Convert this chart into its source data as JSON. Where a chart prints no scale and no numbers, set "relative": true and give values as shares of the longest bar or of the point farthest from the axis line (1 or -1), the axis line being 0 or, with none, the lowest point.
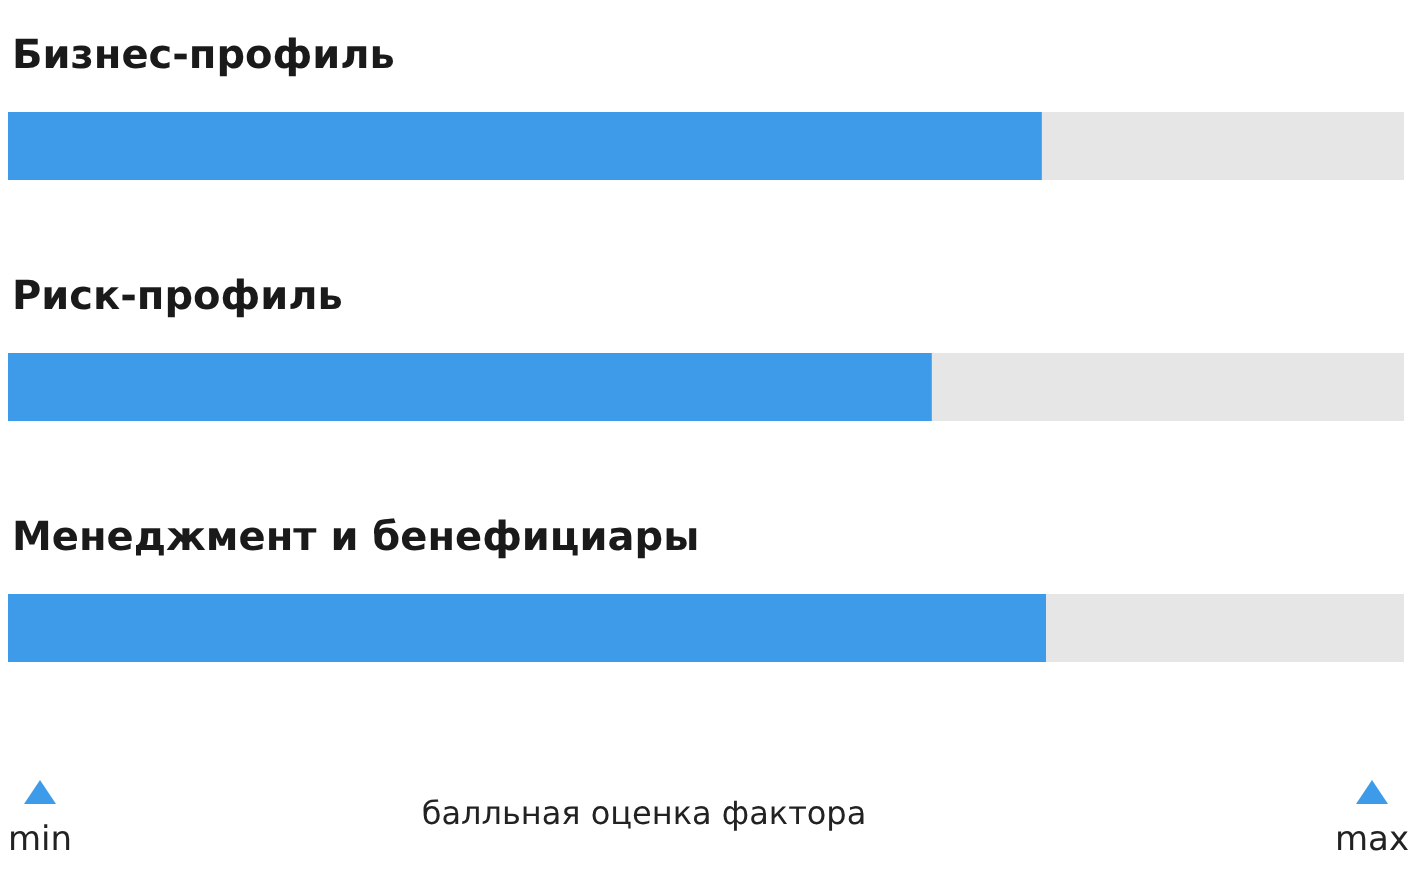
{
  "chart_data": {
    "type": "bar",
    "orientation": "horizontal",
    "relative": true,
    "xlabel": "балльная оценка фактора",
    "categories": [
      "Бизнес-профиль",
      "Риск-профиль",
      "Менеджмент и бенефициары"
    ],
    "values": [
      0.996,
      0.89,
      1
    ],
    "color": "#3d9be9",
    "annotations": [
      "min",
      "max"
    ]
  }
}
